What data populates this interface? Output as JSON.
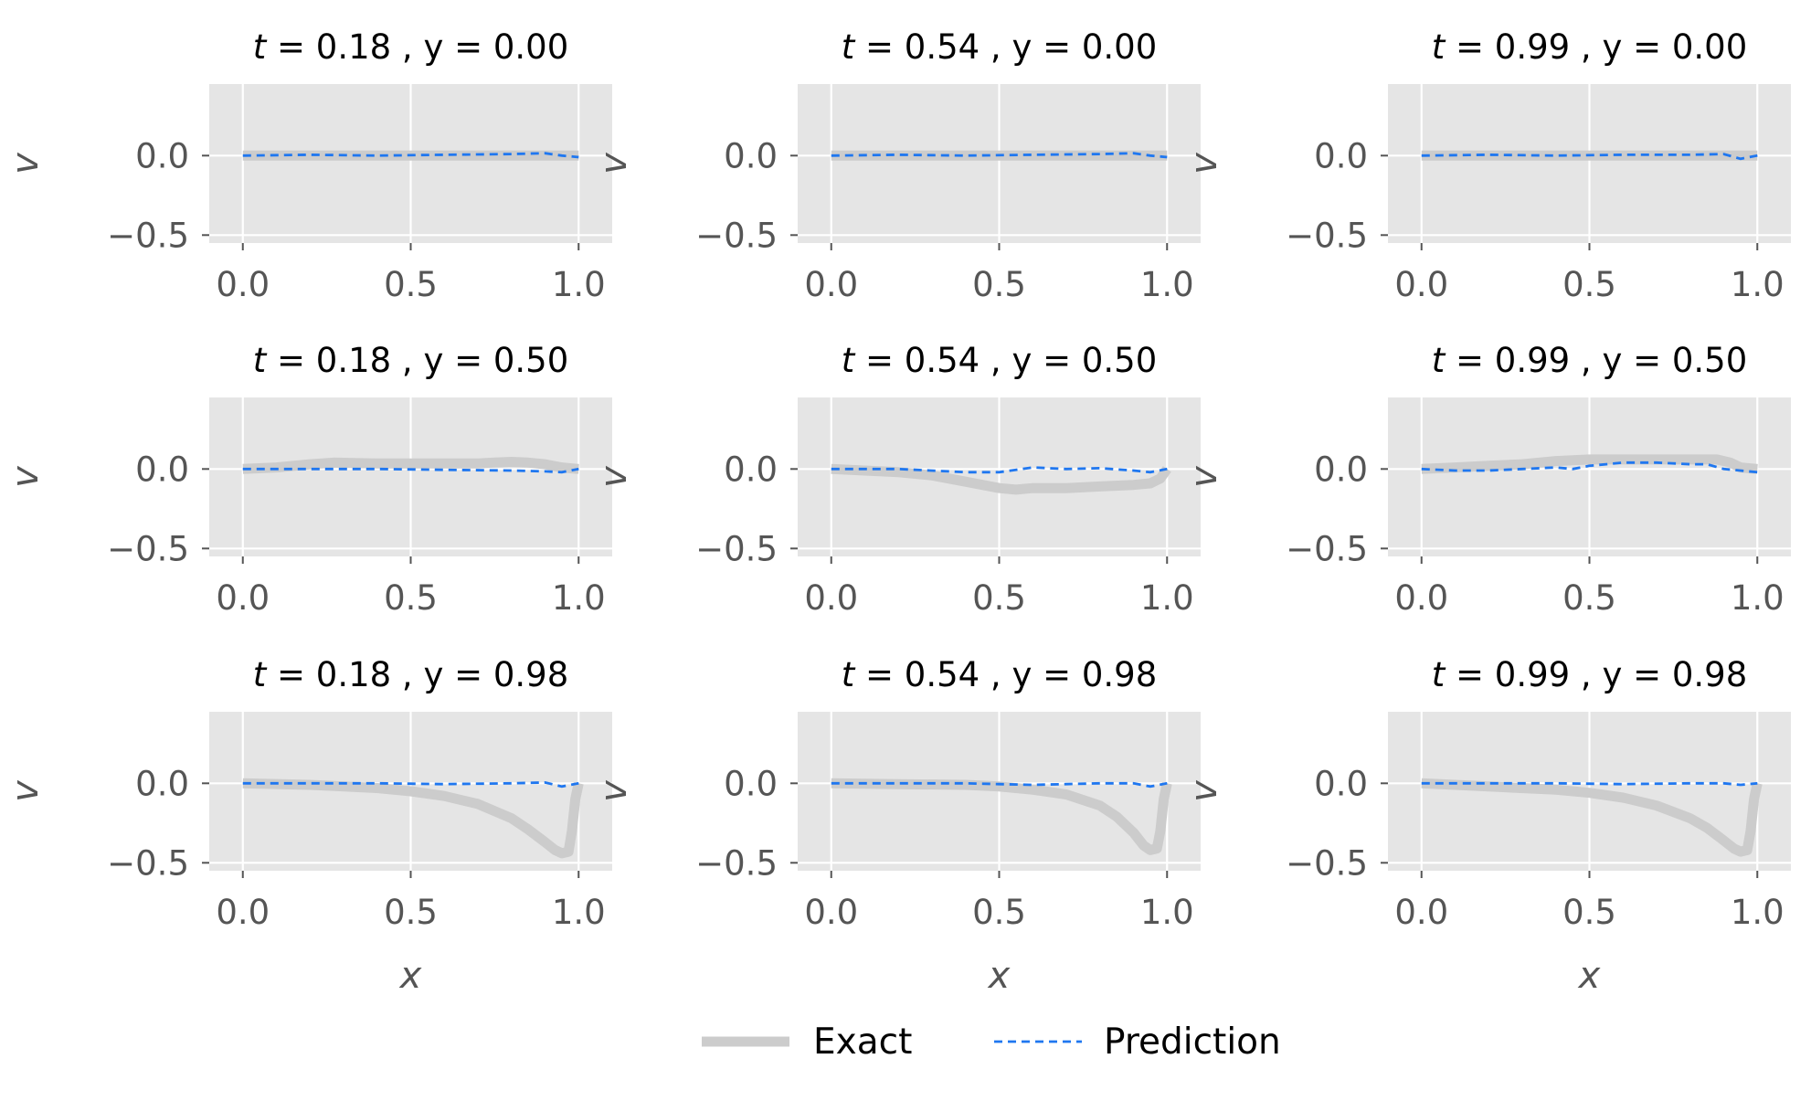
{
  "chart_data": {
    "type": "line",
    "layout": "3x3 grid",
    "legend": {
      "placement": "bottom-center",
      "entries": [
        {
          "label": "Exact",
          "color": "#cccccc",
          "style": "solid-thick"
        },
        {
          "label": "Prediction",
          "color": "#1f77f0",
          "style": "dashed"
        }
      ]
    },
    "xlim": [
      -0.1,
      1.1
    ],
    "ylim": [
      -0.55,
      0.45
    ],
    "xticks": [
      "0.0",
      "0.5",
      "1.0"
    ],
    "yticks": [
      "0.0",
      "−0.5"
    ],
    "grid": true,
    "panels": [
      {
        "title_t": "0.18",
        "title_y": "0.00",
        "ylabel": "v",
        "xlabel": "",
        "exact": {
          "x": [
            0,
            0.5,
            1.0
          ],
          "y": [
            0,
            0,
            0
          ]
        },
        "prediction": {
          "x": [
            0,
            0.2,
            0.4,
            0.6,
            0.8,
            0.9,
            0.95,
            1.0
          ],
          "y": [
            0.0,
            0.005,
            0.0,
            0.005,
            0.01,
            0.015,
            0.0,
            -0.01
          ]
        }
      },
      {
        "title_t": "0.54",
        "title_y": "0.00",
        "ylabel": "v",
        "xlabel": "",
        "exact": {
          "x": [
            0,
            0.5,
            1.0
          ],
          "y": [
            0,
            0,
            0
          ]
        },
        "prediction": {
          "x": [
            0,
            0.2,
            0.4,
            0.6,
            0.8,
            0.9,
            0.95,
            1.0
          ],
          "y": [
            0.0,
            0.005,
            0.0,
            0.005,
            0.01,
            0.015,
            0.0,
            -0.01
          ]
        }
      },
      {
        "title_t": "0.99",
        "title_y": "0.00",
        "ylabel": "v",
        "xlabel": "",
        "exact": {
          "x": [
            0,
            0.5,
            1.0
          ],
          "y": [
            0,
            0,
            0
          ]
        },
        "prediction": {
          "x": [
            0,
            0.2,
            0.4,
            0.6,
            0.8,
            0.9,
            0.95,
            1.0
          ],
          "y": [
            0.0,
            0.005,
            0.0,
            0.005,
            0.005,
            0.01,
            -0.02,
            0.0
          ]
        }
      },
      {
        "title_t": "0.18",
        "title_y": "0.50",
        "ylabel": "v",
        "xlabel": "",
        "exact": {
          "x": [
            0,
            0.1,
            0.2,
            0.27,
            0.4,
            0.5,
            0.6,
            0.7,
            0.75,
            0.8,
            0.85,
            0.9,
            0.95,
            1.0
          ],
          "y": [
            0.0,
            0.01,
            0.03,
            0.04,
            0.035,
            0.035,
            0.035,
            0.035,
            0.04,
            0.045,
            0.04,
            0.03,
            0.01,
            0.0
          ]
        },
        "prediction": {
          "x": [
            0,
            0.2,
            0.4,
            0.6,
            0.8,
            0.9,
            0.95,
            1.0
          ],
          "y": [
            0.0,
            0.0,
            0.0,
            -0.005,
            -0.01,
            -0.015,
            -0.02,
            0.0
          ]
        }
      },
      {
        "title_t": "0.54",
        "title_y": "0.50",
        "ylabel": "v",
        "xlabel": "",
        "exact": {
          "x": [
            0,
            0.1,
            0.2,
            0.3,
            0.4,
            0.5,
            0.55,
            0.6,
            0.7,
            0.8,
            0.9,
            0.95,
            0.98,
            1.0
          ],
          "y": [
            0.0,
            -0.01,
            -0.02,
            -0.04,
            -0.08,
            -0.12,
            -0.13,
            -0.12,
            -0.12,
            -0.11,
            -0.1,
            -0.09,
            -0.06,
            0.0
          ]
        },
        "prediction": {
          "x": [
            0,
            0.2,
            0.4,
            0.5,
            0.6,
            0.7,
            0.8,
            0.9,
            0.95,
            1.0
          ],
          "y": [
            0.0,
            0.0,
            -0.02,
            -0.02,
            0.01,
            0.0,
            0.005,
            -0.01,
            -0.02,
            0.0
          ]
        }
      },
      {
        "title_t": "0.99",
        "title_y": "0.50",
        "ylabel": "v",
        "xlabel": "",
        "exact": {
          "x": [
            0,
            0.1,
            0.2,
            0.3,
            0.4,
            0.5,
            0.6,
            0.7,
            0.8,
            0.88,
            0.92,
            0.95,
            1.0
          ],
          "y": [
            0.0,
            0.01,
            0.02,
            0.03,
            0.05,
            0.06,
            0.06,
            0.06,
            0.06,
            0.06,
            0.04,
            0.01,
            0.0
          ]
        },
        "prediction": {
          "x": [
            0,
            0.1,
            0.2,
            0.3,
            0.4,
            0.45,
            0.5,
            0.55,
            0.6,
            0.7,
            0.8,
            0.85,
            0.9,
            1.0
          ],
          "y": [
            0.0,
            -0.01,
            -0.01,
            0.0,
            0.01,
            0.0,
            0.02,
            0.03,
            0.04,
            0.04,
            0.03,
            0.03,
            0.0,
            -0.02
          ]
        }
      },
      {
        "title_t": "0.18",
        "title_y": "0.98",
        "ylabel": "v",
        "xlabel": "x",
        "exact": {
          "x": [
            0,
            0.2,
            0.4,
            0.5,
            0.6,
            0.7,
            0.8,
            0.85,
            0.9,
            0.93,
            0.95,
            0.97,
            0.98,
            0.99,
            1.0
          ],
          "y": [
            0.0,
            -0.01,
            -0.03,
            -0.05,
            -0.08,
            -0.13,
            -0.22,
            -0.29,
            -0.37,
            -0.42,
            -0.44,
            -0.43,
            -0.3,
            -0.1,
            0.0
          ]
        },
        "prediction": {
          "x": [
            0,
            0.2,
            0.4,
            0.6,
            0.8,
            0.9,
            0.95,
            1.0
          ],
          "y": [
            0.0,
            0.0,
            0.0,
            -0.005,
            0.0,
            0.005,
            -0.02,
            0.0
          ]
        }
      },
      {
        "title_t": "0.54",
        "title_y": "0.98",
        "ylabel": "v",
        "xlabel": "x",
        "exact": {
          "x": [
            0,
            0.2,
            0.4,
            0.5,
            0.6,
            0.7,
            0.8,
            0.85,
            0.9,
            0.93,
            0.95,
            0.97,
            0.98,
            0.99,
            1.0
          ],
          "y": [
            0.0,
            -0.005,
            -0.01,
            -0.02,
            -0.04,
            -0.07,
            -0.14,
            -0.21,
            -0.31,
            -0.39,
            -0.42,
            -0.41,
            -0.3,
            -0.1,
            0.0
          ]
        },
        "prediction": {
          "x": [
            0,
            0.2,
            0.4,
            0.5,
            0.6,
            0.7,
            0.8,
            0.9,
            0.95,
            1.0
          ],
          "y": [
            0.0,
            0.0,
            0.0,
            -0.005,
            -0.01,
            -0.005,
            0.0,
            0.0,
            -0.02,
            0.0
          ]
        }
      },
      {
        "title_t": "0.99",
        "title_y": "0.98",
        "ylabel": "v",
        "xlabel": "x",
        "exact": {
          "x": [
            0,
            0.2,
            0.4,
            0.5,
            0.6,
            0.7,
            0.8,
            0.85,
            0.9,
            0.93,
            0.95,
            0.97,
            0.98,
            0.99,
            1.0
          ],
          "y": [
            0.0,
            -0.02,
            -0.04,
            -0.06,
            -0.09,
            -0.14,
            -0.22,
            -0.28,
            -0.36,
            -0.41,
            -0.43,
            -0.42,
            -0.3,
            -0.1,
            0.0
          ]
        },
        "prediction": {
          "x": [
            0,
            0.2,
            0.4,
            0.6,
            0.8,
            0.9,
            0.95,
            1.0
          ],
          "y": [
            0.0,
            0.0,
            0.0,
            -0.005,
            0.0,
            0.0,
            -0.01,
            0.0
          ]
        }
      }
    ]
  }
}
